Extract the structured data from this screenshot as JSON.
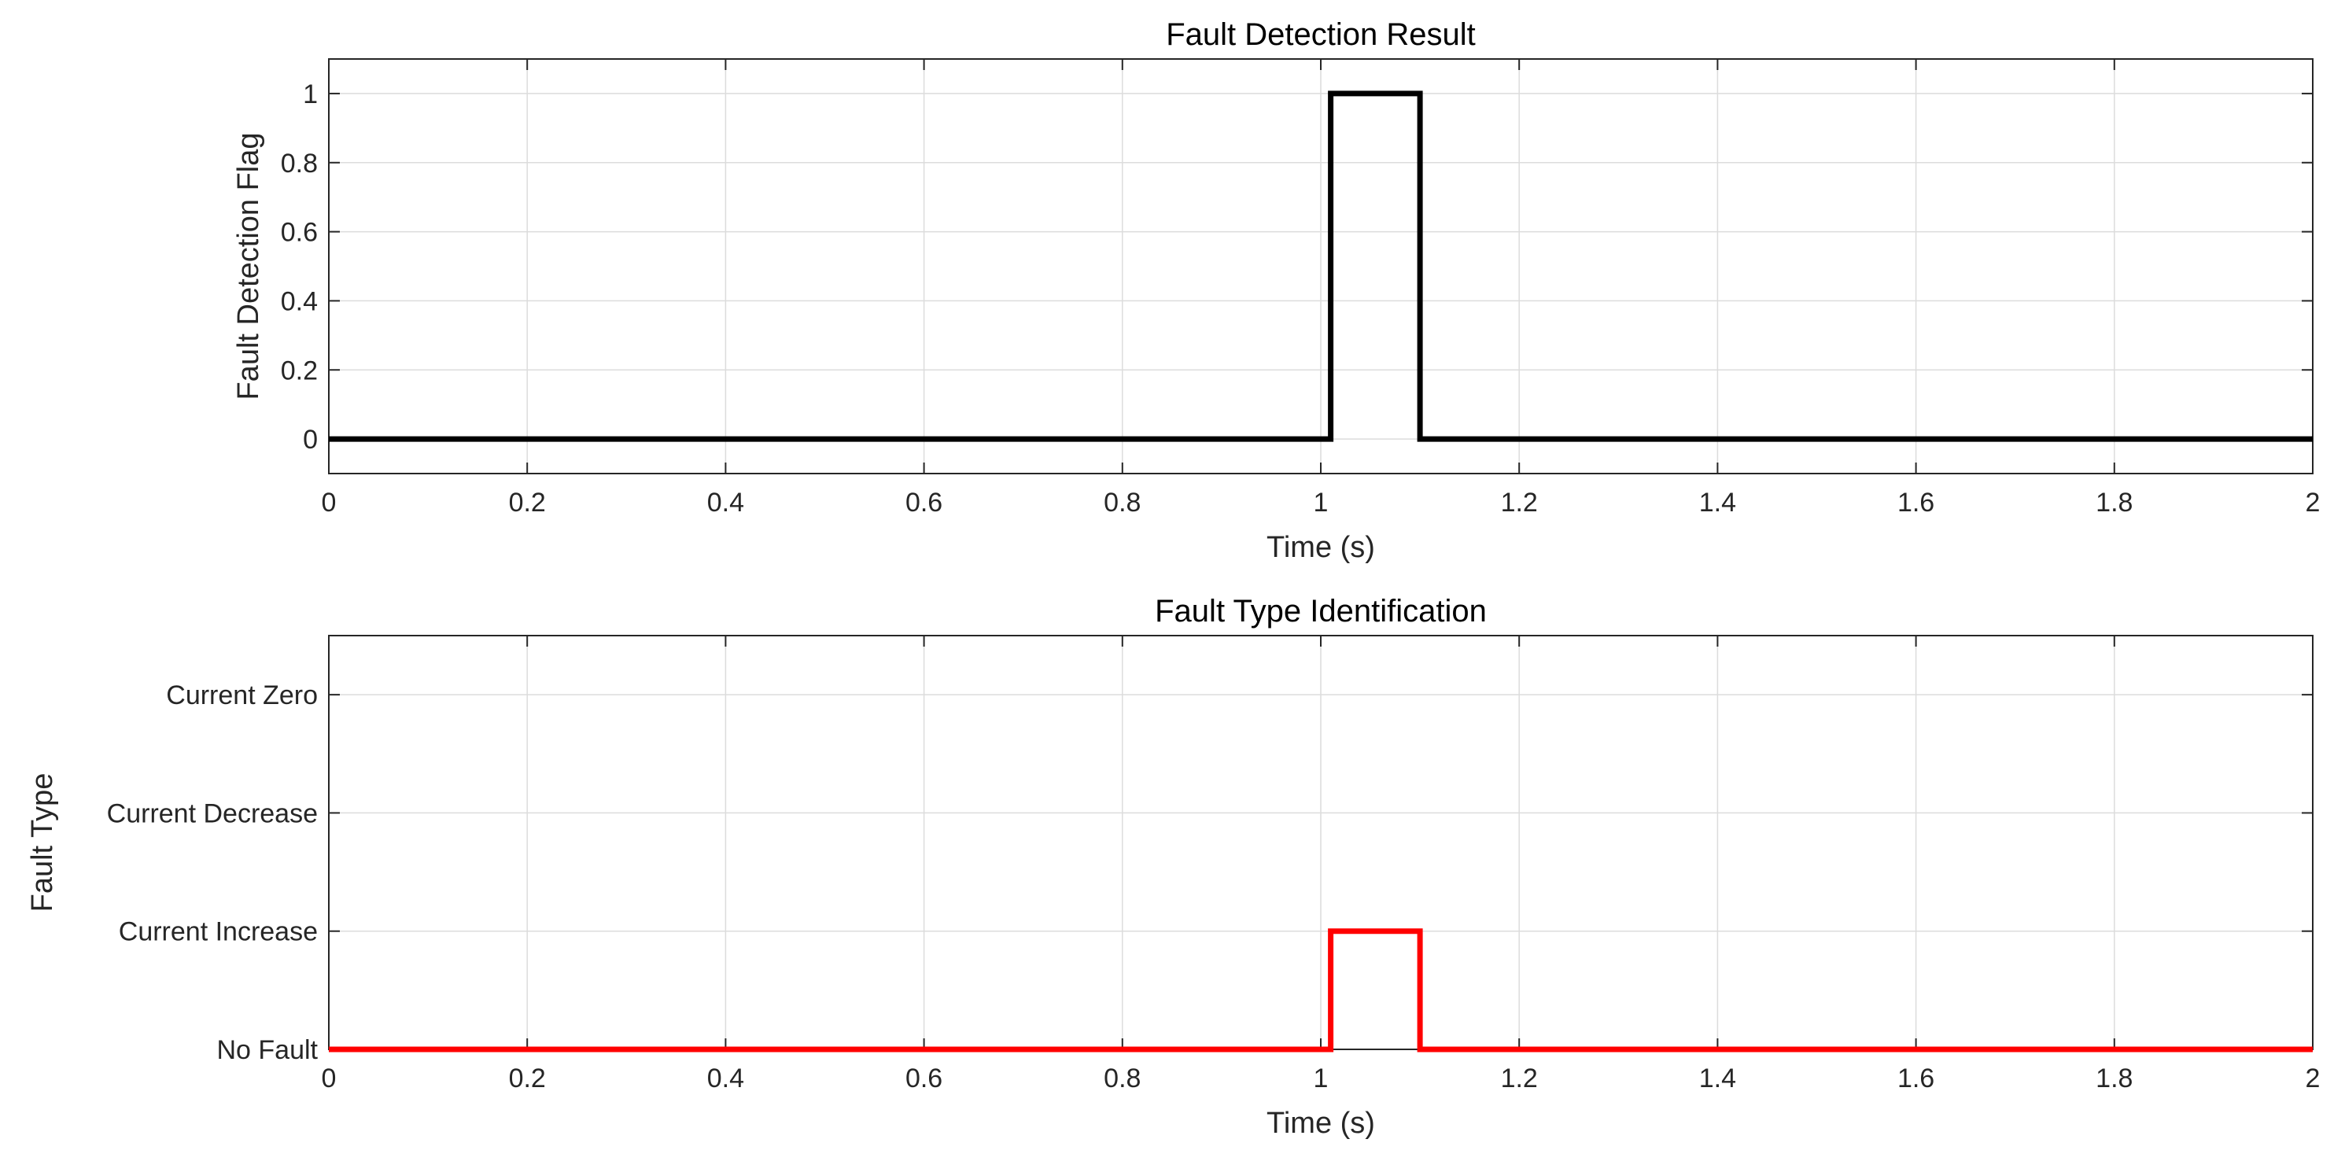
{
  "chart_data": [
    {
      "type": "line",
      "title": "Fault Detection Result",
      "xlabel": "Time (s)",
      "ylabel": "Fault Detection Flag",
      "xlim": [
        0,
        2
      ],
      "ylim": [
        -0.1,
        1.1
      ],
      "xticks": [
        0,
        0.2,
        0.4,
        0.6,
        0.8,
        1,
        1.2,
        1.4,
        1.6,
        1.8,
        2
      ],
      "xtick_labels": [
        "0",
        "0.2",
        "0.4",
        "0.6",
        "0.8",
        "1",
        "1.2",
        "1.4",
        "1.6",
        "1.8",
        "2"
      ],
      "yticks": [
        0,
        0.2,
        0.4,
        0.6,
        0.8,
        1
      ],
      "ytick_labels": [
        "0",
        "0.2",
        "0.4",
        "0.6",
        "0.8",
        "1"
      ],
      "grid": true,
      "series": [
        {
          "color": "#000000",
          "x": [
            0,
            1.01,
            1.01,
            1.1,
            1.1,
            2
          ],
          "y": [
            0,
            0,
            1,
            1,
            0,
            0
          ]
        }
      ]
    },
    {
      "type": "line",
      "title": "Fault Type Identification",
      "xlabel": "Time (s)",
      "ylabel": "Fault Type",
      "xlim": [
        0,
        2
      ],
      "ylim": [
        0,
        3.5
      ],
      "xticks": [
        0,
        0.2,
        0.4,
        0.6,
        0.8,
        1,
        1.2,
        1.4,
        1.6,
        1.8,
        2
      ],
      "xtick_labels": [
        "0",
        "0.2",
        "0.4",
        "0.6",
        "0.8",
        "1",
        "1.2",
        "1.4",
        "1.6",
        "1.8",
        "2"
      ],
      "yticks": [
        0,
        1,
        2,
        3
      ],
      "ytick_labels": [
        "No Fault",
        "Current Increase",
        "Current Decrease",
        "Current Zero"
      ],
      "grid": true,
      "series": [
        {
          "color": "#ff0000",
          "x": [
            0,
            1.01,
            1.01,
            1.1,
            1.1,
            2
          ],
          "y": [
            0,
            0,
            1,
            1,
            0,
            0
          ]
        }
      ]
    }
  ]
}
